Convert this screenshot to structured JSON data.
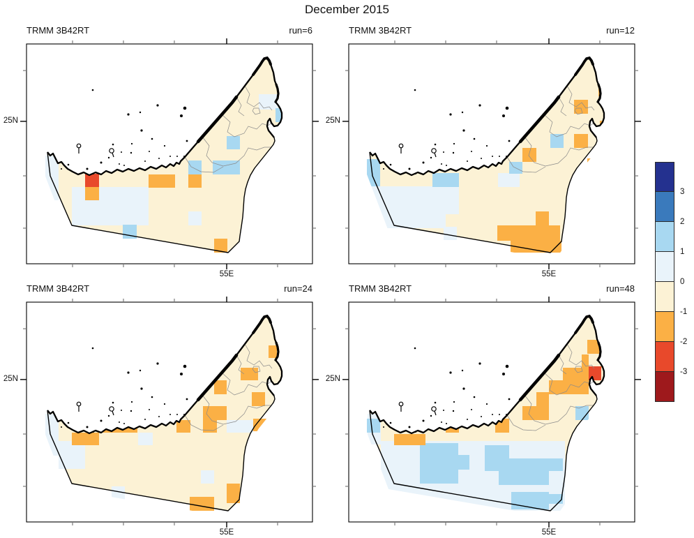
{
  "title": "December 2015",
  "chart_data": {
    "type": "heatmap",
    "title": "December 2015",
    "dataset": "TRMM 3B42RT",
    "layout": "2x2 map panels with shared vertical colorbar",
    "region": "United Arab Emirates",
    "axes": {
      "x_tick_label": "55E",
      "y_tick_label": "25N"
    },
    "colorbar": {
      "orientation": "vertical",
      "position": "right",
      "tick_labels": [
        "3",
        "2",
        "1",
        "0",
        "-1",
        "-2",
        "-3"
      ],
      "segment_colors_top_to_bottom": [
        "#24318f",
        "#3a7abc",
        "#a8d8f1",
        "#e9f3fa",
        "#fcf2d5",
        "#fbb045",
        "#e8492b",
        "#9e191c"
      ]
    },
    "value_key": {
      "R": "-3 to -2",
      "O": "-2 to -1",
      "base_land": "-1 to 0",
      "P": "0 to 1",
      "B": "1 to 2"
    },
    "panels": [
      {
        "label": "TRMM 3B42RT",
        "run_label": "run=6",
        "run": 6,
        "cells": [
          [
            "P",
            27,
            160,
            19,
            64
          ],
          [
            "P",
            65,
            205,
            110,
            55
          ],
          [
            "P",
            232,
            240,
            19,
            20
          ],
          [
            "P",
            333,
            72,
            28,
            22
          ],
          [
            "B",
            232,
            167,
            19,
            20
          ],
          [
            "B",
            267,
            167,
            39,
            20
          ],
          [
            "B",
            287,
            132,
            19,
            19
          ],
          [
            "B",
            357,
            92,
            21,
            20
          ],
          [
            "B",
            138,
            259,
            20,
            20
          ],
          [
            "O",
            84,
            205,
            20,
            19
          ],
          [
            "O",
            175,
            187,
            38,
            19
          ],
          [
            "O",
            232,
            187,
            19,
            19
          ],
          [
            "O",
            269,
            279,
            19,
            20
          ],
          [
            "R",
            84,
            186,
            20,
            19
          ]
        ]
      },
      {
        "label": "TRMM 3B42RT",
        "run_label": "run=12",
        "run": 12,
        "cells": [
          [
            "P",
            26,
            204,
            132,
            40
          ],
          [
            "P",
            46,
            244,
            74,
            20
          ],
          [
            "P",
            120,
            244,
            19,
            20
          ],
          [
            "P",
            136,
            262,
            19,
            19
          ],
          [
            "P",
            214,
            185,
            31,
            20
          ],
          [
            "B",
            26,
            165,
            19,
            39
          ],
          [
            "B",
            120,
            185,
            38,
            20
          ],
          [
            "B",
            230,
            169,
            19,
            17
          ],
          [
            "B",
            289,
            129,
            19,
            20
          ],
          [
            "O",
            358,
            55,
            20,
            20
          ],
          [
            "O",
            323,
            80,
            20,
            20
          ],
          [
            "O",
            360,
            110,
            18,
            21
          ],
          [
            "O",
            323,
            129,
            20,
            20
          ],
          [
            "O",
            249,
            149,
            20,
            20
          ],
          [
            "O",
            342,
            164,
            20,
            20
          ],
          [
            "O",
            268,
            240,
            19,
            20
          ],
          [
            "O",
            213,
            260,
            90,
            22
          ],
          [
            "O",
            232,
            282,
            73,
            17
          ]
        ]
      },
      {
        "label": "TRMM 3B42RT",
        "run_label": "run=24",
        "run": 24,
        "cells": [
          [
            "P",
            27,
            160,
            19,
            60
          ],
          [
            "P",
            46,
            199,
            38,
            40
          ],
          [
            "P",
            160,
            187,
            21,
            18
          ],
          [
            "P",
            250,
            241,
            19,
            19
          ],
          [
            "P",
            122,
            264,
            19,
            20
          ],
          [
            "P",
            287,
            169,
            38,
            18
          ],
          [
            "O",
            355,
            35,
            23,
            20
          ],
          [
            "O",
            347,
            62,
            12,
            18
          ],
          [
            "O",
            307,
            94,
            25,
            18
          ],
          [
            "O",
            269,
            112,
            18,
            20
          ],
          [
            "O",
            367,
            109,
            15,
            23
          ],
          [
            "O",
            323,
            129,
            19,
            20
          ],
          [
            "O",
            253,
            149,
            34,
            20
          ],
          [
            "O",
            215,
            169,
            20,
            18
          ],
          [
            "O",
            253,
            169,
            20,
            18
          ],
          [
            "O",
            325,
            167,
            19,
            18
          ],
          [
            "O",
            102,
            167,
            57,
            20
          ],
          [
            "O",
            65,
            187,
            39,
            18
          ],
          [
            "O",
            234,
            279,
            35,
            20
          ],
          [
            "O",
            287,
            260,
            19,
            28
          ]
        ]
      },
      {
        "label": "TRMM 3B42RT",
        "run_label": "run=48",
        "run": 48,
        "cells": [
          [
            "P",
            27,
            160,
            19,
            44
          ],
          [
            "P",
            46,
            199,
            264,
            100
          ],
          [
            "B",
            26,
            167,
            19,
            20
          ],
          [
            "B",
            102,
            202,
            55,
            58
          ],
          [
            "B",
            157,
            219,
            16,
            21
          ],
          [
            "B",
            195,
            205,
            35,
            37
          ],
          [
            "B",
            215,
            224,
            72,
            38
          ],
          [
            "B",
            233,
            272,
            54,
            25
          ],
          [
            "B",
            287,
            224,
            20,
            18
          ],
          [
            "B",
            287,
            275,
            20,
            14
          ],
          [
            "B",
            325,
            149,
            19,
            20
          ],
          [
            "O",
            342,
            54,
            38,
            20
          ],
          [
            "O",
            372,
            39,
            9,
            16
          ],
          [
            "O",
            334,
            75,
            10,
            19
          ],
          [
            "O",
            362,
            75,
            18,
            19
          ],
          [
            "O",
            307,
            94,
            37,
            18
          ],
          [
            "O",
            287,
            112,
            57,
            20
          ],
          [
            "O",
            269,
            129,
            18,
            21
          ],
          [
            "O",
            249,
            149,
            38,
            20
          ],
          [
            "O",
            210,
            167,
            20,
            20
          ],
          [
            "O",
            139,
            164,
            19,
            23
          ],
          [
            "O",
            65,
            189,
            45,
            16
          ],
          [
            "R",
            344,
            92,
            18,
            20
          ],
          [
            "R",
            372,
            110,
            12,
            22
          ]
        ]
      }
    ]
  }
}
